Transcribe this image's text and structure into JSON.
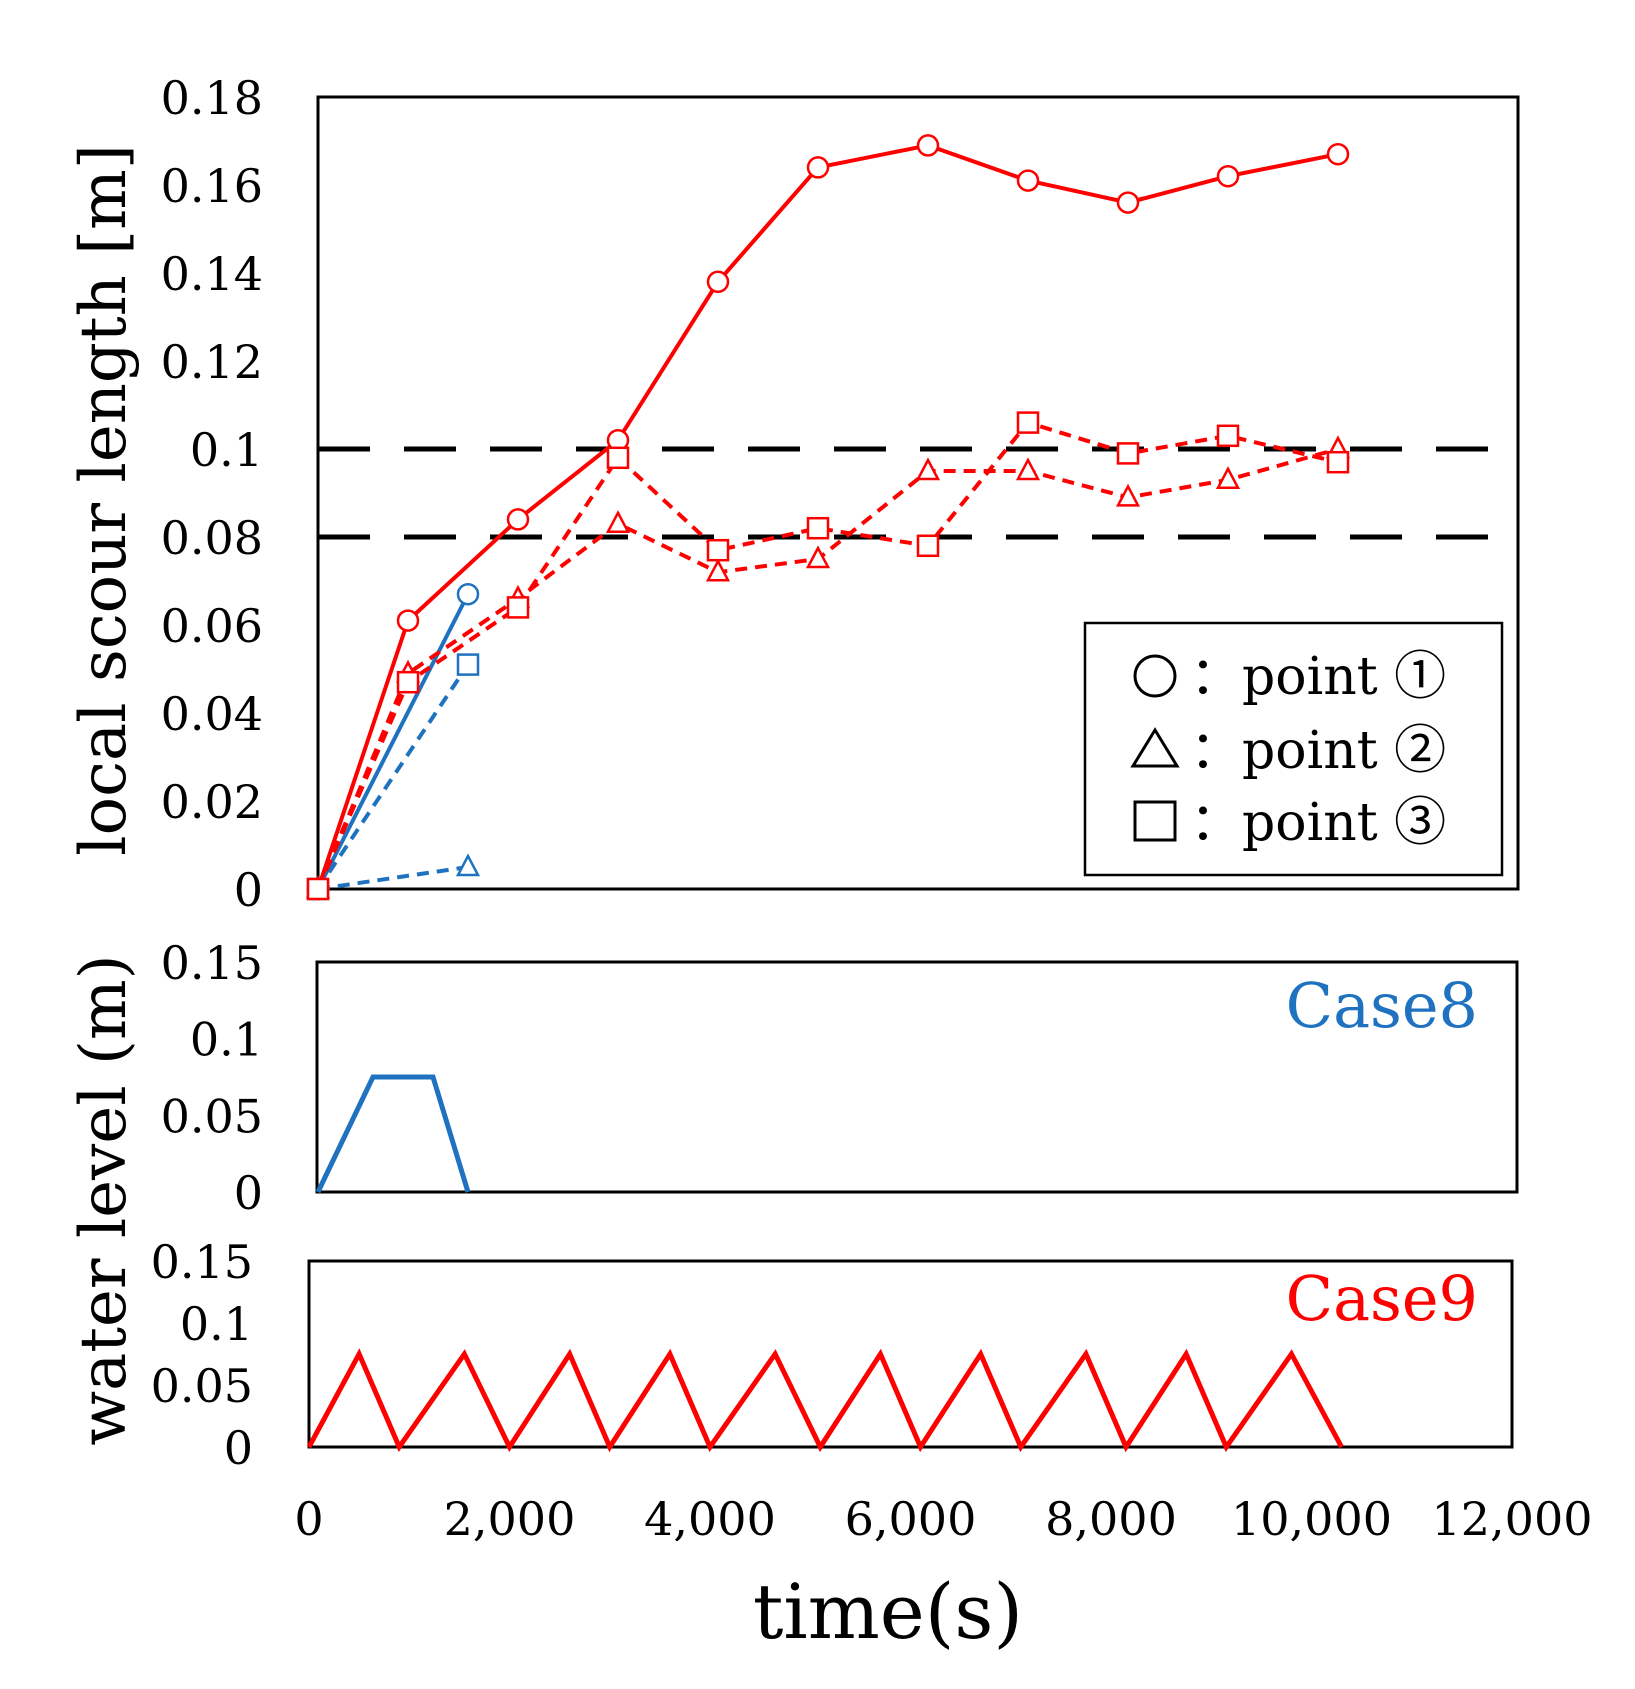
{
  "colors": {
    "case8": "#1f72c0",
    "case9": "#ff0000",
    "reference": "#000000"
  },
  "chart_data": [
    {
      "type": "line",
      "title": "",
      "xlabel": "time(s)",
      "ylabel": "local scour length [m]",
      "xlim": [
        0,
        12000
      ],
      "ylim": [
        0,
        0.18
      ],
      "xticks": [
        0,
        2000,
        4000,
        6000,
        8000,
        10000,
        12000
      ],
      "xtick_labels": [
        "0",
        "2,000",
        "4,000",
        "6,000",
        "8,000",
        "10,000",
        "12,000"
      ],
      "yticks": [
        0,
        0.02,
        0.04,
        0.06,
        0.08,
        0.1,
        0.12,
        0.14,
        0.16,
        0.18
      ],
      "ytick_labels": [
        "0",
        "0.02",
        "0.04",
        "0.06",
        "0.08",
        "0.1",
        "0.12",
        "0.14",
        "0.16",
        "0.18"
      ],
      "reference_lines": [
        0.1,
        0.08
      ],
      "legend": {
        "position": "bottom-right",
        "entries": [
          {
            "marker": "circle",
            "label": "：point ①"
          },
          {
            "marker": "triangle",
            "label": "：point ②"
          },
          {
            "marker": "square",
            "label": "：point ③"
          }
        ]
      },
      "series": [
        {
          "name": "Case8 point ①",
          "case": "case8",
          "marker": "circle",
          "dash": false,
          "x": [
            0,
            1500
          ],
          "y": [
            0,
            0.067
          ]
        },
        {
          "name": "Case8 point ②",
          "case": "case8",
          "marker": "triangle",
          "dash": true,
          "x": [
            0,
            1500
          ],
          "y": [
            0,
            0.005
          ]
        },
        {
          "name": "Case8 point ③",
          "case": "case8",
          "marker": "square",
          "dash": true,
          "x": [
            0,
            1500
          ],
          "y": [
            0,
            0.051
          ]
        },
        {
          "name": "Case9 point ①",
          "case": "case9",
          "marker": "circle",
          "dash": false,
          "x": [
            0,
            900,
            2000,
            3000,
            4000,
            5000,
            6100,
            7100,
            8100,
            9100,
            10200
          ],
          "y": [
            0,
            0.061,
            0.084,
            0.102,
            0.138,
            0.164,
            0.169,
            0.161,
            0.156,
            0.162,
            0.167
          ]
        },
        {
          "name": "Case9 point ②",
          "case": "case9",
          "marker": "triangle",
          "dash": true,
          "x": [
            0,
            900,
            2000,
            3000,
            4000,
            5000,
            6100,
            7100,
            8100,
            9100,
            10200
          ],
          "y": [
            0,
            0.049,
            0.066,
            0.083,
            0.072,
            0.075,
            0.095,
            0.095,
            0.089,
            0.093,
            0.1
          ]
        },
        {
          "name": "Case9 point ③",
          "case": "case9",
          "marker": "square",
          "dash": true,
          "x": [
            0,
            900,
            2000,
            3000,
            4000,
            5000,
            6100,
            7100,
            8100,
            9100,
            10200
          ],
          "y": [
            0,
            0.047,
            0.064,
            0.098,
            0.077,
            0.082,
            0.078,
            0.106,
            0.099,
            0.103,
            0.097
          ]
        }
      ]
    },
    {
      "type": "line",
      "title": "Case8",
      "case": "case8",
      "xlabel": "time(s)",
      "ylabel": "water level (m)",
      "xlim": [
        0,
        12000
      ],
      "ylim": [
        0,
        0.15
      ],
      "yticks": [
        0,
        0.05,
        0.1,
        0.15
      ],
      "ytick_labels": [
        "0",
        "0.05",
        "0.1",
        "0.15"
      ],
      "series": [
        {
          "name": "Case8",
          "x": [
            0,
            550,
            1150,
            1500
          ],
          "y": [
            0,
            0.075,
            0.075,
            0
          ]
        }
      ]
    },
    {
      "type": "line",
      "title": "Case9",
      "case": "case9",
      "xlabel": "time(s)",
      "ylabel": "water level (m)",
      "xlim": [
        0,
        12000
      ],
      "ylim": [
        0,
        0.15
      ],
      "yticks": [
        0,
        0.05,
        0.1,
        0.15
      ],
      "ytick_labels": [
        "0",
        "0.05",
        "0.1",
        "0.15"
      ],
      "series": [
        {
          "name": "Case9",
          "x": [
            0,
            500,
            900,
            1550,
            2000,
            2600,
            3000,
            3600,
            4000,
            4650,
            5100,
            5700,
            6100,
            6700,
            7100,
            7750,
            8150,
            8750,
            9150,
            9800,
            10300
          ],
          "y": [
            0,
            0.075,
            0,
            0.075,
            0,
            0.075,
            0,
            0.075,
            0,
            0.075,
            0,
            0.075,
            0,
            0.075,
            0,
            0.075,
            0,
            0.075,
            0,
            0.075,
            0
          ]
        }
      ]
    }
  ]
}
